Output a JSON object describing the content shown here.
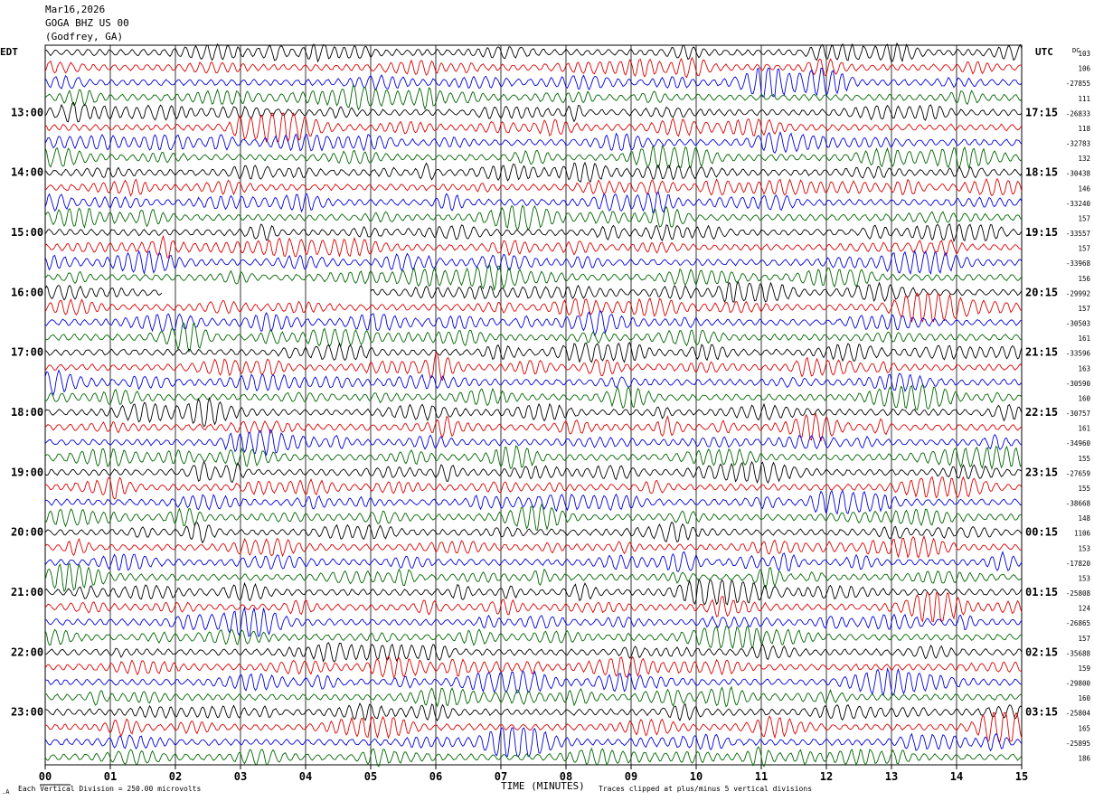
{
  "header": {
    "date": "Mar16,2026",
    "station": "GOGA BHZ US 00",
    "location": "(Godfrey, GA)"
  },
  "labels": {
    "left_tz": "EDT",
    "right_tz": "UTC",
    "dc": "DC",
    "xlabel": "TIME (MINUTES)",
    "scale_note": "Each Vertical Division =  250.00 microvolts",
    "clip_note": "Traces clipped at plus/minus 5 vertical divisions"
  },
  "colors": {
    "trace_cycle": [
      "#000000",
      "#dd0000",
      "#0000dd",
      "#006600"
    ],
    "grid": "#000000",
    "background": "#ffffff"
  },
  "chart_data": {
    "type": "line",
    "title": "",
    "xlabel": "TIME (MINUTES)",
    "ylabel": "",
    "xlim": [
      0,
      15
    ],
    "x_ticks": [
      "00",
      "01",
      "02",
      "03",
      "04",
      "05",
      "06",
      "07",
      "08",
      "09",
      "10",
      "11",
      "12",
      "13",
      "14",
      "15"
    ],
    "left_hour_labels": [
      "13:00",
      "14:00",
      "15:00",
      "16:00",
      "17:00",
      "18:00",
      "19:00",
      "20:00",
      "21:00",
      "22:00",
      "23:00"
    ],
    "right_hour_labels": [
      "17:15",
      "18:15",
      "19:15",
      "20:15",
      "21:15",
      "22:15",
      "23:15",
      "00:15",
      "01:15",
      "02:15",
      "03:15"
    ],
    "dc_offsets": [
      "103",
      "106",
      "-27855",
      "111",
      "-26833",
      "118",
      "-32783",
      "132",
      "-30438",
      "146",
      "-33240",
      "157",
      "-33557",
      "157",
      "-33968",
      "156",
      "-29992",
      "157",
      "-30503",
      "161",
      "-33596",
      "163",
      "-30590",
      "160",
      "-30757",
      "161",
      "-34960",
      "155",
      "-27659",
      "155",
      "-38668",
      "148",
      "1106",
      "153",
      "-17820",
      "153",
      "-25808",
      "124",
      "-26865",
      "157",
      "-35688",
      "159",
      "-29800",
      "160",
      "-25804",
      "165",
      "-25895",
      "186"
    ],
    "trace_count": 48,
    "series_color_cycle": [
      "black",
      "red",
      "blue",
      "green"
    ],
    "gap": {
      "trace_index": 16,
      "start_min": 1.8,
      "end_min": 5.0
    }
  }
}
